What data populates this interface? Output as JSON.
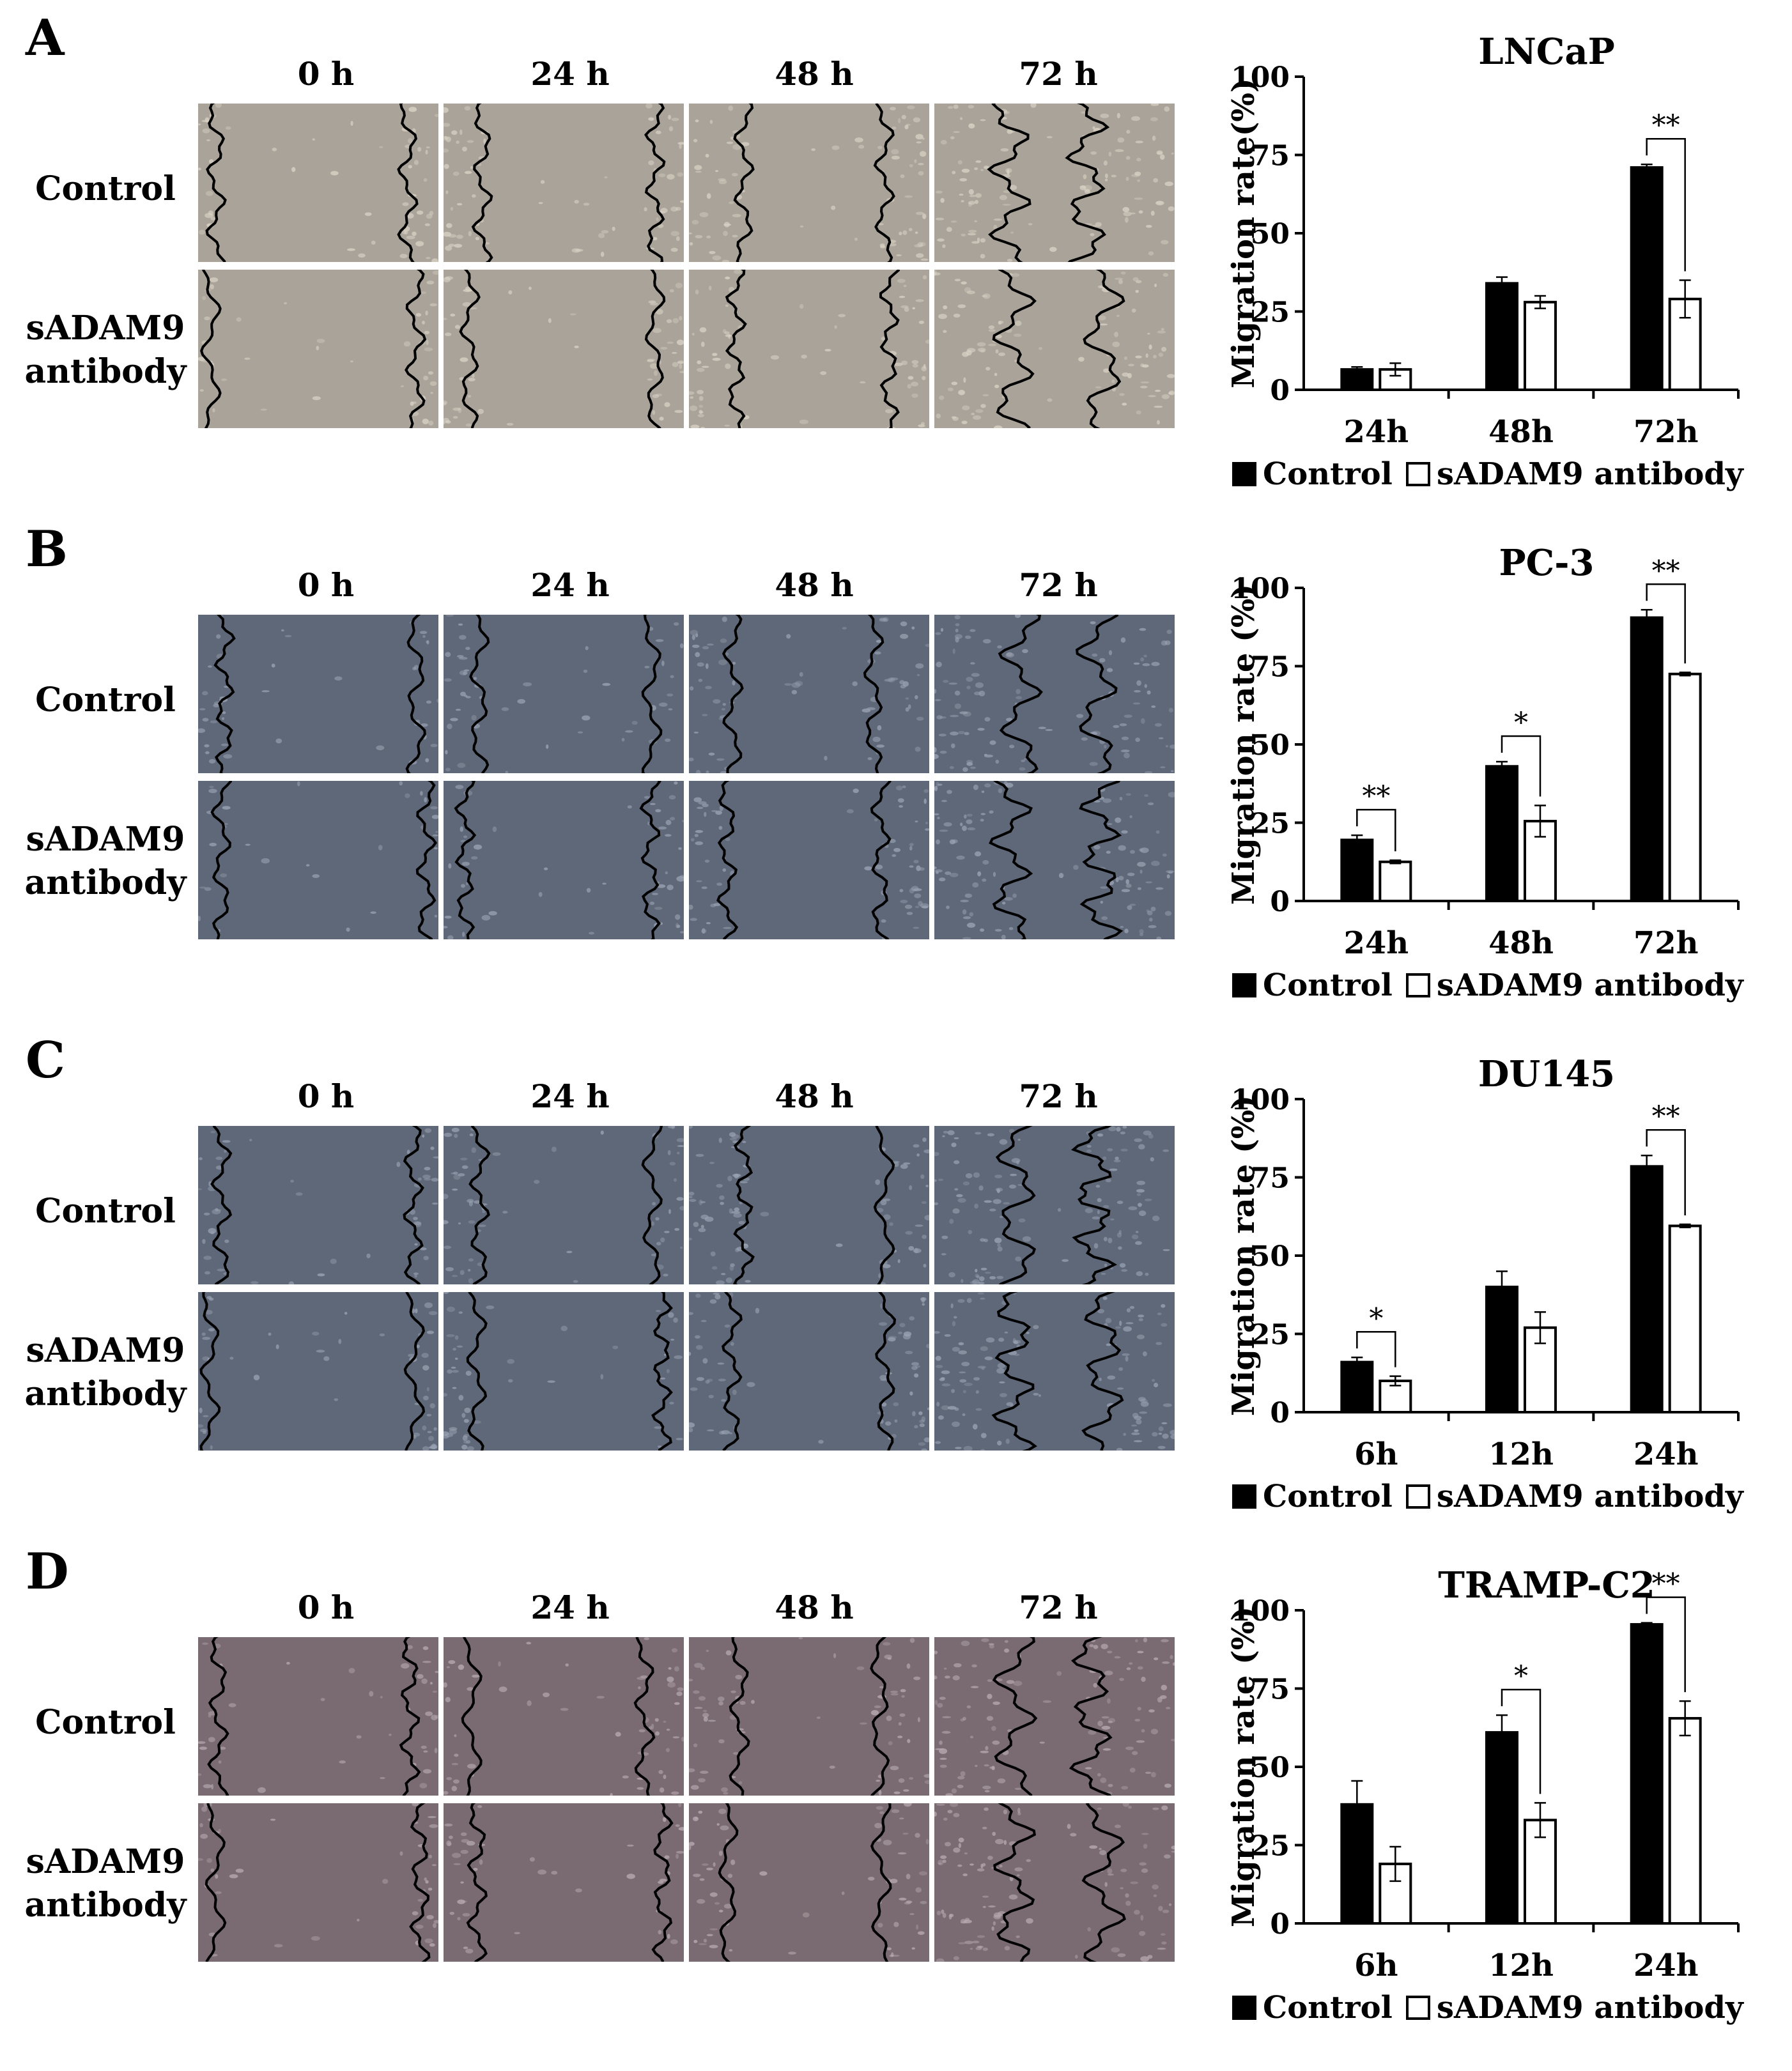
{
  "panels": [
    {
      "letter": "A",
      "time_labels": [
        "0 h",
        "24 h",
        "48 h",
        "72 h"
      ],
      "row_labels": [
        [
          "Control"
        ],
        [
          "sADAM9",
          "antibody"
        ]
      ],
      "image_tone": "warm"
    },
    {
      "letter": "B",
      "time_labels": [
        "0 h",
        "24 h",
        "48 h",
        "72 h"
      ],
      "row_labels": [
        [
          "Control"
        ],
        [
          "sADAM9",
          "antibody"
        ]
      ],
      "image_tone": "blue"
    },
    {
      "letter": "C",
      "time_labels": [
        "0 h",
        "24 h",
        "48 h",
        "72 h"
      ],
      "row_labels": [
        [
          "Control"
        ],
        [
          "sADAM9",
          "antibody"
        ]
      ],
      "image_tone": "blue"
    },
    {
      "letter": "D",
      "time_labels": [
        "0 h",
        "24 h",
        "48 h",
        "72 h"
      ],
      "row_labels": [
        [
          "Control"
        ],
        [
          "sADAM9",
          "antibody"
        ]
      ],
      "image_tone": "mauve"
    }
  ],
  "colors": {
    "control_bar": "#000000",
    "antibody_bar": "#ffffff",
    "warm_bg": "#a9a39a",
    "blue_bg": "#5f6878",
    "mauve_bg": "#7a6b72"
  },
  "chart_data": [
    {
      "type": "bar",
      "title": "LNCaP",
      "ylabel": "Migration rate(%)",
      "categories": [
        "24h",
        "48h",
        "72h"
      ],
      "ylim": [
        0,
        100
      ],
      "yticks": [
        0,
        25,
        50,
        75,
        100
      ],
      "series": [
        {
          "name": "Control",
          "values": [
            6.5,
            34,
            71
          ],
          "errors": [
            0.8,
            2,
            1
          ]
        },
        {
          "name": "sADAM9 antibody",
          "values": [
            6.5,
            28,
            29
          ],
          "errors": [
            2,
            2,
            6
          ]
        }
      ],
      "significance": [
        {
          "category": 2,
          "label": "**"
        }
      ],
      "legend": "bottom"
    },
    {
      "type": "bar",
      "title": "PC-3",
      "ylabel": "Migration rate (%)",
      "categories": [
        "24h",
        "48h",
        "72h"
      ],
      "ylim": [
        0,
        100
      ],
      "yticks": [
        0,
        25,
        50,
        75,
        100
      ],
      "series": [
        {
          "name": "Control",
          "values": [
            19.5,
            43,
            90.5
          ],
          "errors": [
            1.5,
            1.5,
            2.5
          ]
        },
        {
          "name": "sADAM9 antibody",
          "values": [
            12.5,
            25.5,
            72.5
          ],
          "errors": [
            0.5,
            5,
            0.5
          ]
        }
      ],
      "significance": [
        {
          "category": 0,
          "label": "**"
        },
        {
          "category": 1,
          "label": "*"
        },
        {
          "category": 2,
          "label": "**"
        }
      ],
      "legend": "bottom"
    },
    {
      "type": "bar",
      "title": "DU145",
      "ylabel": "Migration rate (%)",
      "categories": [
        "6h",
        "12h",
        "24h"
      ],
      "ylim": [
        0,
        100
      ],
      "yticks": [
        0,
        25,
        50,
        75,
        100
      ],
      "series": [
        {
          "name": "Control",
          "values": [
            16,
            40,
            78.5
          ],
          "errors": [
            1.5,
            5,
            3.5
          ]
        },
        {
          "name": "sADAM9 antibody",
          "values": [
            10,
            27,
            59.5
          ],
          "errors": [
            1.5,
            5,
            0.5
          ]
        }
      ],
      "significance": [
        {
          "category": 0,
          "label": "*"
        },
        {
          "category": 2,
          "label": "**"
        }
      ],
      "legend": "bottom"
    },
    {
      "type": "bar",
      "title": "TRAMP-C2",
      "ylabel": "Migration rate  (%)",
      "categories": [
        "6h",
        "12h",
        "24h"
      ],
      "ylim": [
        0,
        100
      ],
      "yticks": [
        0,
        25,
        50,
        75,
        100
      ],
      "series": [
        {
          "name": "Control",
          "values": [
            38,
            61,
            95.5
          ],
          "errors": [
            7.5,
            5.5,
            0.5
          ]
        },
        {
          "name": "sADAM9 antibody",
          "values": [
            19,
            33,
            65.5
          ],
          "errors": [
            5.5,
            5.5,
            5.5
          ]
        }
      ],
      "significance": [
        {
          "category": 1,
          "label": "*"
        },
        {
          "category": 2,
          "label": "**"
        }
      ],
      "legend": "bottom"
    }
  ]
}
